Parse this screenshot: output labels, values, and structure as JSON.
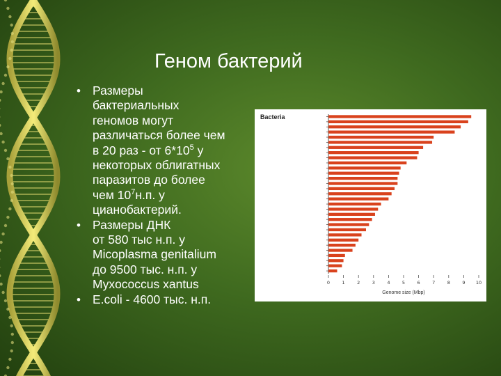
{
  "slide": {
    "title": "Геном бактерий",
    "bullets": [
      {
        "lines": [
          {
            "text": "Размеры"
          },
          {
            "text": "бактериальных"
          },
          {
            "text": "геномов могут"
          },
          {
            "text": "различаться более чем"
          },
          {
            "pre": "в 20 раз - от 6*10",
            "sup": "5",
            "post": " у"
          },
          {
            "text": "некоторых облигатных"
          },
          {
            "text": "паразитов до более"
          },
          {
            "pre": "чем 10",
            "sup": "7",
            "post": "н.п. у"
          },
          {
            "text": "цианобактерий."
          }
        ]
      },
      {
        "lines": [
          {
            "text": "Размеры ДНК"
          },
          {
            "text": "от 580 тыс н.п. у"
          },
          {
            "text": "Micoplasma genitalium"
          },
          {
            "text": "до 9500 тыс. н.п. у"
          },
          {
            "text": "Myxococcus xantus"
          }
        ]
      },
      {
        "lines": [
          {
            "text": "E.coli  - 4600 тыс. н.п."
          }
        ]
      }
    ]
  },
  "colors": {
    "background": "#3f6a1f",
    "text": "#ffffff",
    "bar": "#d9421d",
    "panel": "#ffffff"
  },
  "chart_data": {
    "type": "bar",
    "orientation": "horizontal",
    "title": "Bacteria",
    "xlabel": "Genome size (Mbp)",
    "xlim": [
      0,
      10
    ],
    "xticks": [
      "0",
      "1",
      "2",
      "3",
      "4",
      "5",
      "6",
      "7",
      "8",
      "9",
      "10"
    ],
    "grid": false,
    "values": [
      9.5,
      9.3,
      8.8,
      8.4,
      7.0,
      6.9,
      6.3,
      6.0,
      5.9,
      5.2,
      4.8,
      4.7,
      4.6,
      4.6,
      4.4,
      4.2,
      4.0,
      3.5,
      3.3,
      3.1,
      2.9,
      2.7,
      2.5,
      2.2,
      2.0,
      1.8,
      1.6,
      1.1,
      1.0,
      0.9,
      0.58
    ]
  }
}
